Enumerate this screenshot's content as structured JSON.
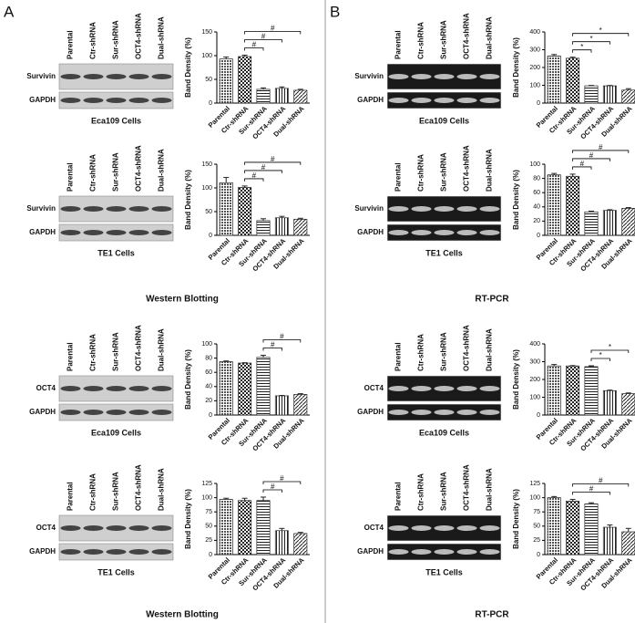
{
  "panel_labels": [
    "A",
    "B"
  ],
  "section_labels": [
    "Western Blotting",
    "RT-PCR",
    "Western Blotting",
    "RT-PCR"
  ],
  "blots": [
    {
      "bands": [
        "Survivin",
        "GAPDH"
      ],
      "caption": "Eca109 Cells",
      "gel": "western"
    },
    {
      "bands": [
        "Survivin",
        "GAPDH"
      ],
      "caption": "TE1 Cells",
      "gel": "western"
    },
    {
      "bands": [
        "OCT4",
        "GAPDH"
      ],
      "caption": "Eca109 Cells",
      "gel": "western"
    },
    {
      "bands": [
        "OCT4",
        "GAPDH"
      ],
      "caption": "TE1 Cells",
      "gel": "western"
    },
    {
      "bands": [
        "Survivin",
        "GAPDH"
      ],
      "caption": "Eca109 Cells",
      "gel": "rt-pcr"
    },
    {
      "bands": [
        "Survivin",
        "GAPDH"
      ],
      "caption": "TE1 Cells",
      "gel": "rt-pcr"
    },
    {
      "bands": [
        "OCT4",
        "GAPDH"
      ],
      "caption": "Eca109 Cells",
      "gel": "rt-pcr"
    },
    {
      "bands": [
        "OCT4",
        "GAPDH"
      ],
      "caption": "TE1 Cells",
      "gel": "rt-pcr"
    }
  ],
  "chart_data": [
    {
      "type": "bar",
      "ylabel": "Band Density (%)",
      "categories": [
        "Parental",
        "Ctr-shRNA",
        "Sur-shRNA",
        "OCT4-shRNA",
        "Dual-shRNA"
      ],
      "values": [
        93,
        98,
        29,
        31,
        27
      ],
      "errors": [
        4,
        3,
        3,
        3,
        2
      ],
      "ylim": [
        0,
        150
      ],
      "yticks": [
        0,
        50,
        100,
        150
      ],
      "color": "#222",
      "significance": [
        {
          "from": "Ctr-shRNA",
          "to": "Sur-shRNA",
          "label": "#"
        },
        {
          "from": "Ctr-shRNA",
          "to": "OCT4-shRNA",
          "label": "#"
        },
        {
          "from": "Ctr-shRNA",
          "to": "Dual-shRNA",
          "label": "#"
        }
      ]
    },
    {
      "type": "bar",
      "ylabel": "Band Density (%)",
      "categories": [
        "Parental",
        "Ctr-shRNA",
        "Sur-shRNA",
        "OCT4-shRNA",
        "Dual-shRNA"
      ],
      "values": [
        111,
        101,
        31,
        37,
        34
      ],
      "errors": [
        11,
        3,
        4,
        3,
        2
      ],
      "ylim": [
        0,
        150
      ],
      "yticks": [
        0,
        50,
        100,
        150
      ],
      "color": "#222",
      "significance": [
        {
          "from": "Ctr-shRNA",
          "to": "Sur-shRNA",
          "label": "#"
        },
        {
          "from": "Ctr-shRNA",
          "to": "OCT4-shRNA",
          "label": "#"
        },
        {
          "from": "Ctr-shRNA",
          "to": "Dual-shRNA",
          "label": "#"
        }
      ]
    },
    {
      "type": "bar",
      "ylabel": "Band Density (%)",
      "categories": [
        "Parental",
        "Ctr-shRNA",
        "Sur-shRNA",
        "OCT4-shRNA",
        "Dual-shRNA"
      ],
      "values": [
        75,
        73,
        81,
        27,
        29
      ],
      "errors": [
        1,
        0.5,
        3,
        0.5,
        1
      ],
      "ylim": [
        0,
        100
      ],
      "yticks": [
        0,
        20,
        40,
        60,
        80,
        100
      ],
      "color": "#222",
      "significance": [
        {
          "from": "Sur-shRNA",
          "to": "OCT4-shRNA",
          "label": "#"
        },
        {
          "from": "Sur-shRNA",
          "to": "Dual-shRNA",
          "label": "#"
        }
      ]
    },
    {
      "type": "bar",
      "ylabel": "Band Density (%)",
      "categories": [
        "Parental",
        "Ctr-shRNA",
        "Sur-shRNA",
        "OCT4-shRNA",
        "Dual-shRNA"
      ],
      "values": [
        97,
        95,
        95,
        42,
        37
      ],
      "errors": [
        2,
        4,
        6,
        4,
        2
      ],
      "ylim": [
        0,
        125
      ],
      "yticks": [
        0,
        25,
        50,
        75,
        100,
        125
      ],
      "color": "#222",
      "significance": [
        {
          "from": "Sur-shRNA",
          "to": "OCT4-shRNA",
          "label": "#"
        },
        {
          "from": "Sur-shRNA",
          "to": "Dual-shRNA",
          "label": "#"
        }
      ]
    },
    {
      "type": "bar",
      "ylabel": "Band Density (%)",
      "categories": [
        "Parental",
        "Ctr-shRNA",
        "Sur-shRNA",
        "OCT4-shRNA",
        "Dual-shRNA"
      ],
      "values": [
        265,
        252,
        97,
        97,
        73
      ],
      "errors": [
        8,
        6,
        2,
        2,
        8
      ],
      "ylim": [
        0,
        400
      ],
      "yticks": [
        0,
        100,
        200,
        300,
        400
      ],
      "color": "#222",
      "significance": [
        {
          "from": "Ctr-shRNA",
          "to": "Sur-shRNA",
          "label": "*"
        },
        {
          "from": "Ctr-shRNA",
          "to": "OCT4-shRNA",
          "label": "*"
        },
        {
          "from": "Ctr-shRNA",
          "to": "Dual-shRNA",
          "label": "*"
        }
      ]
    },
    {
      "type": "bar",
      "ylabel": "Band Density (%)",
      "categories": [
        "Parental",
        "Ctr-shRNA",
        "Sur-shRNA",
        "OCT4-shRNA",
        "Dual-shRNA"
      ],
      "values": [
        85,
        83,
        33,
        35,
        38
      ],
      "errors": [
        2,
        3,
        1,
        1,
        1
      ],
      "ylim": [
        0,
        100
      ],
      "yticks": [
        0,
        20,
        40,
        60,
        80,
        100
      ],
      "color": "#222",
      "significance": [
        {
          "from": "Ctr-shRNA",
          "to": "Sur-shRNA",
          "label": "#"
        },
        {
          "from": "Ctr-shRNA",
          "to": "OCT4-shRNA",
          "label": "#"
        },
        {
          "from": "Ctr-shRNA",
          "to": "Dual-shRNA",
          "label": "#"
        }
      ]
    },
    {
      "type": "bar",
      "ylabel": "Band Density (%)",
      "categories": [
        "Parental",
        "Ctr-shRNA",
        "Sur-shRNA",
        "OCT4-shRNA",
        "Dual-shRNA"
      ],
      "values": [
        276,
        276,
        272,
        137,
        120
      ],
      "errors": [
        8,
        2,
        5,
        3,
        4
      ],
      "ylim": [
        0,
        400
      ],
      "yticks": [
        0,
        100,
        200,
        300,
        400
      ],
      "color": "#222",
      "significance": [
        {
          "from": "Sur-shRNA",
          "to": "OCT4-shRNA",
          "label": "*"
        },
        {
          "from": "Sur-shRNA",
          "to": "Dual-shRNA",
          "label": "*"
        }
      ]
    },
    {
      "type": "bar",
      "ylabel": "Band Density (%)",
      "categories": [
        "Parental",
        "Ctr-shRNA",
        "Sur-shRNA",
        "OCT4-shRNA",
        "Dual-shRNA"
      ],
      "values": [
        100,
        94,
        89,
        48,
        40
      ],
      "errors": [
        2,
        3,
        2,
        4,
        6
      ],
      "ylim": [
        0,
        125
      ],
      "yticks": [
        0,
        25,
        50,
        75,
        100,
        125
      ],
      "color": "#222",
      "significance": [
        {
          "from": "Ctr-shRNA",
          "to": "OCT4-shRNA",
          "label": "#"
        },
        {
          "from": "Ctr-shRNA",
          "to": "Dual-shRNA",
          "label": "#"
        }
      ]
    }
  ]
}
